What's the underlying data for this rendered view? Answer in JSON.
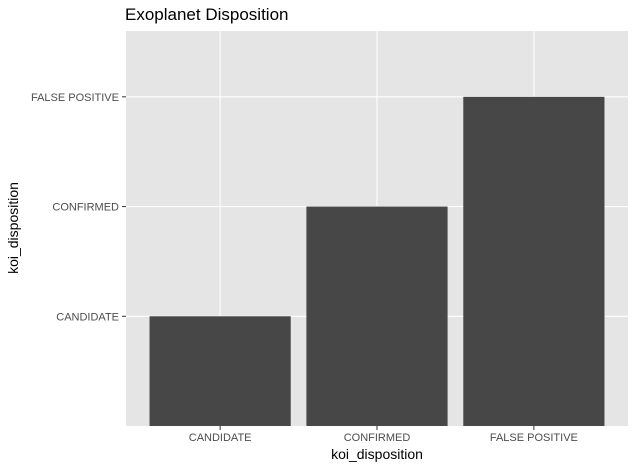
{
  "chart_data": {
    "type": "bar",
    "title": "Exoplanet Disposition",
    "xlabel": "koi_disposition",
    "ylabel": "koi_disposition",
    "categories": [
      "CANDIDATE",
      "CONFIRMED",
      "FALSE POSITIVE"
    ],
    "values": [
      "CANDIDATE",
      "CONFIRMED",
      "FALSE POSITIVE"
    ],
    "y_categories": [
      "CANDIDATE",
      "CONFIRMED",
      "FALSE POSITIVE"
    ],
    "grid": true,
    "colors": {
      "panel_background": "#e5e5e5",
      "grid": "#ffffff",
      "bar_fill": "#474747",
      "tick_mark": "#333333",
      "tick_text": "#4d4d4d"
    }
  }
}
